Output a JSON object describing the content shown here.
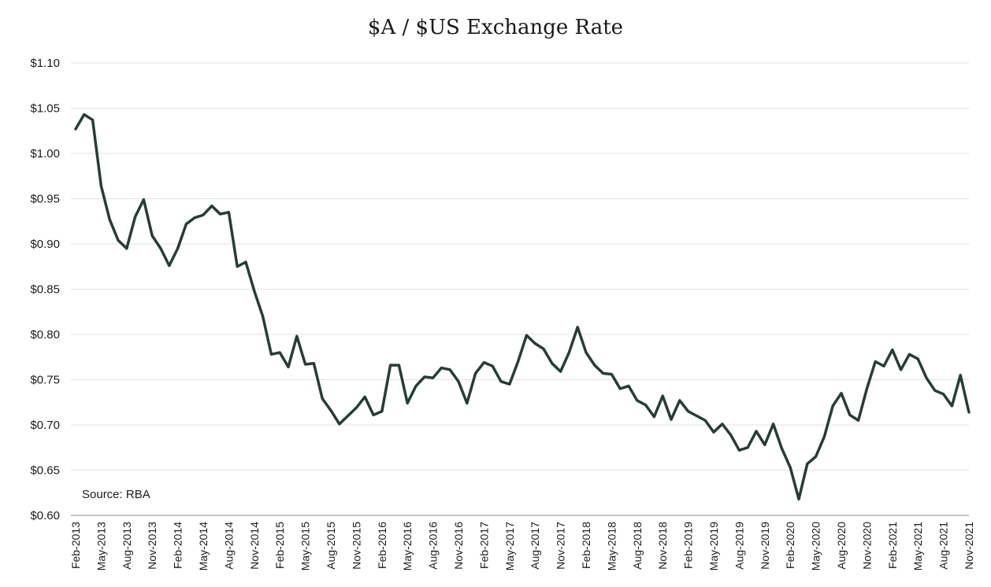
{
  "chart_data": {
    "type": "line",
    "title": "$A / $US Exchange Rate",
    "source": "Source: RBA",
    "xlabel": "",
    "ylabel": "",
    "ylim": [
      0.6,
      1.1
    ],
    "y_ticks": [
      0.6,
      0.65,
      0.7,
      0.75,
      0.8,
      0.85,
      0.9,
      0.95,
      1.0,
      1.05,
      1.1
    ],
    "y_tick_labels": [
      "$0.60",
      "$0.65",
      "$0.70",
      "$0.75",
      "$0.80",
      "$0.85",
      "$0.90",
      "$0.95",
      "$1.00",
      "$1.05",
      "$1.10"
    ],
    "x_tick_labels": [
      "Feb-2013",
      "May-2013",
      "Aug-2013",
      "Nov-2013",
      "Feb-2014",
      "May-2014",
      "Aug-2014",
      "Nov-2014",
      "Feb-2015",
      "May-2015",
      "Aug-2015",
      "Nov-2015",
      "Feb-2016",
      "May-2016",
      "Aug-2016",
      "Nov-2016",
      "Feb-2017",
      "May-2017",
      "Aug-2017",
      "Nov-2017",
      "Feb-2018",
      "May-2018",
      "Aug-2018",
      "Nov-2018",
      "Feb-2019",
      "May-2019",
      "Aug-2019",
      "Nov-2019",
      "Feb-2020",
      "May-2020",
      "Aug-2020",
      "Nov-2020",
      "Feb-2021",
      "May-2021",
      "Aug-2021",
      "Nov-2021"
    ],
    "grid": true,
    "line_color": "#263d36",
    "series": [
      {
        "values": [
          1.027,
          1.043,
          1.037,
          0.964,
          0.927,
          0.904,
          0.895,
          0.93,
          0.949,
          0.909,
          0.895,
          0.876,
          0.895,
          0.922,
          0.929,
          0.932,
          0.942,
          0.933,
          0.935,
          0.875,
          0.88,
          0.848,
          0.82,
          0.778,
          0.78,
          0.764,
          0.798,
          0.767,
          0.768,
          0.729,
          0.716,
          0.701,
          0.71,
          0.719,
          0.731,
          0.711,
          0.715,
          0.766,
          0.766,
          0.724,
          0.743,
          0.753,
          0.752,
          0.763,
          0.761,
          0.748,
          0.724,
          0.757,
          0.769,
          0.765,
          0.748,
          0.745,
          0.77,
          0.799,
          0.79,
          0.784,
          0.768,
          0.759,
          0.78,
          0.808,
          0.78,
          0.766,
          0.757,
          0.756,
          0.74,
          0.743,
          0.727,
          0.722,
          0.709,
          0.732,
          0.706,
          0.727,
          0.715,
          0.71,
          0.705,
          0.692,
          0.701,
          0.689,
          0.672,
          0.675,
          0.693,
          0.678,
          0.701,
          0.674,
          0.653,
          0.618,
          0.657,
          0.665,
          0.687,
          0.721,
          0.735,
          0.711,
          0.705,
          0.74,
          0.77,
          0.765,
          0.783,
          0.761,
          0.778,
          0.773,
          0.752,
          0.738,
          0.734,
          0.721,
          0.755,
          0.714
        ]
      }
    ]
  }
}
